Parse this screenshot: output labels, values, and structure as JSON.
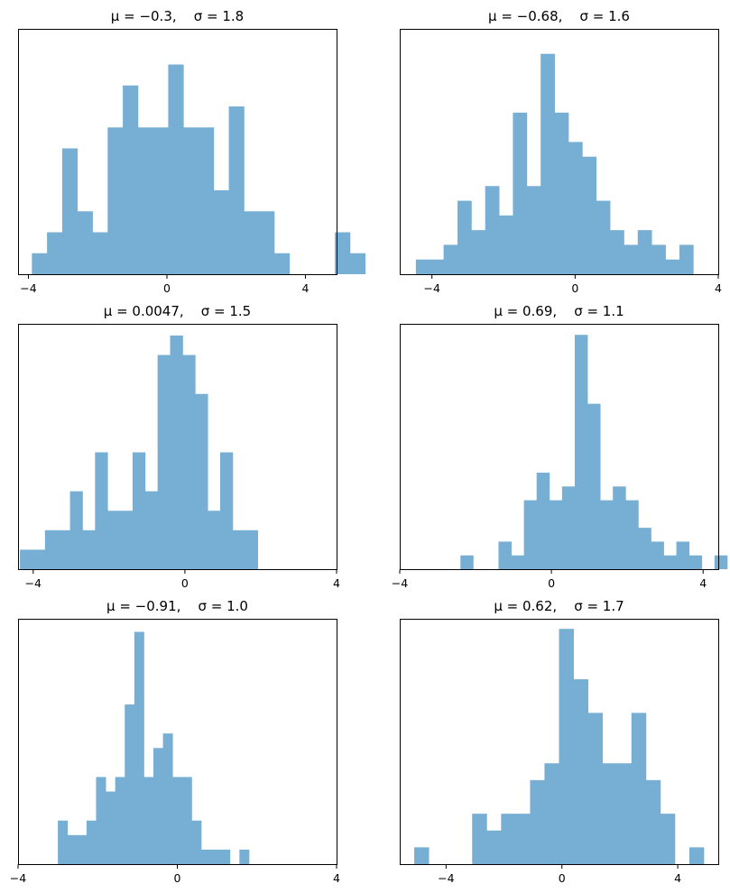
{
  "figure": {
    "bar_color": "#77aed3"
  },
  "chart_data": [
    {
      "type": "bar",
      "title": "μ = −0.3,    σ = 1.8",
      "xlim": [
        -4.3,
        4.9
      ],
      "xticks": [
        -4,
        0,
        4
      ],
      "xtick_labels": [
        "−4",
        "0",
        "4"
      ],
      "bin_start": -3.9,
      "bin_width": 0.4375,
      "counts": [
        1,
        2,
        6,
        3,
        2,
        7,
        9,
        7,
        7,
        10,
        7,
        7,
        4,
        8,
        3,
        3,
        1,
        0,
        0,
        0,
        2,
        1
      ],
      "ylim": [
        0,
        11.7
      ]
    },
    {
      "type": "bar",
      "title": "μ = −0.68,    σ = 1.6",
      "xlim": [
        -4.9,
        4.0
      ],
      "xticks": [
        -4,
        0,
        4
      ],
      "xtick_labels": [
        "−4",
        "0",
        "4"
      ],
      "bin_start": -4.45,
      "bin_width": 0.3875,
      "counts": [
        1,
        1,
        2,
        5,
        3,
        6,
        4,
        11,
        6,
        15,
        11,
        9,
        8,
        5,
        3,
        2,
        3,
        2,
        1,
        2
      ],
      "ylim": [
        0,
        16.7
      ]
    },
    {
      "type": "bar",
      "title": "μ = 0.0047,    σ = 1.5",
      "xlim": [
        -4.4,
        4.0
      ],
      "xticks": [
        -4,
        0,
        4
      ],
      "xtick_labels": [
        "−4",
        "0",
        "4"
      ],
      "bin_start": -4.35,
      "bin_width": 0.33,
      "counts": [
        1,
        1,
        2,
        2,
        4,
        2,
        6,
        3,
        3,
        6,
        4,
        11,
        12,
        11,
        9,
        3,
        6,
        2,
        2
      ],
      "ylim": [
        0,
        12.6
      ]
    },
    {
      "type": "bar",
      "title": "μ = 0.69,    σ = 1.1",
      "xlim": [
        -4.0,
        4.4
      ],
      "xticks": [
        -4,
        0,
        4
      ],
      "xtick_labels": [
        "−4",
        "0",
        "4"
      ],
      "bin_start": -2.4,
      "bin_width": 0.335,
      "counts": [
        1,
        0,
        0,
        2,
        1,
        5,
        7,
        5,
        6,
        17,
        12,
        5,
        6,
        5,
        3,
        2,
        1,
        2,
        1,
        0,
        1
      ],
      "ylim": [
        0,
        17.8
      ]
    },
    {
      "type": "bar",
      "title": "μ = −0.91,    σ = 1.0",
      "xlim": [
        -4.0,
        4.0
      ],
      "xticks": [
        -4,
        0,
        4
      ],
      "xtick_labels": [
        "−4",
        "0",
        "4"
      ],
      "bin_start": -3.0,
      "bin_width": 0.24,
      "counts": [
        3,
        2,
        2,
        3,
        6,
        5,
        6,
        11,
        16,
        6,
        8,
        9,
        6,
        6,
        3,
        1,
        1,
        1,
        0,
        1
      ],
      "ylim": [
        0,
        16.9
      ]
    },
    {
      "type": "bar",
      "title": "μ = 0.62,    σ = 1.7",
      "xlim": [
        -5.6,
        5.4
      ],
      "xticks": [
        -4,
        0,
        4
      ],
      "xtick_labels": [
        "−4",
        "0",
        "4"
      ],
      "bin_start": -5.1,
      "bin_width": 0.5,
      "counts": [
        1,
        0,
        0,
        0,
        3,
        2,
        3,
        3,
        5,
        6,
        14,
        11,
        9,
        6,
        6,
        9,
        5,
        3,
        0,
        1
      ],
      "ylim": [
        0,
        14.6
      ]
    }
  ]
}
